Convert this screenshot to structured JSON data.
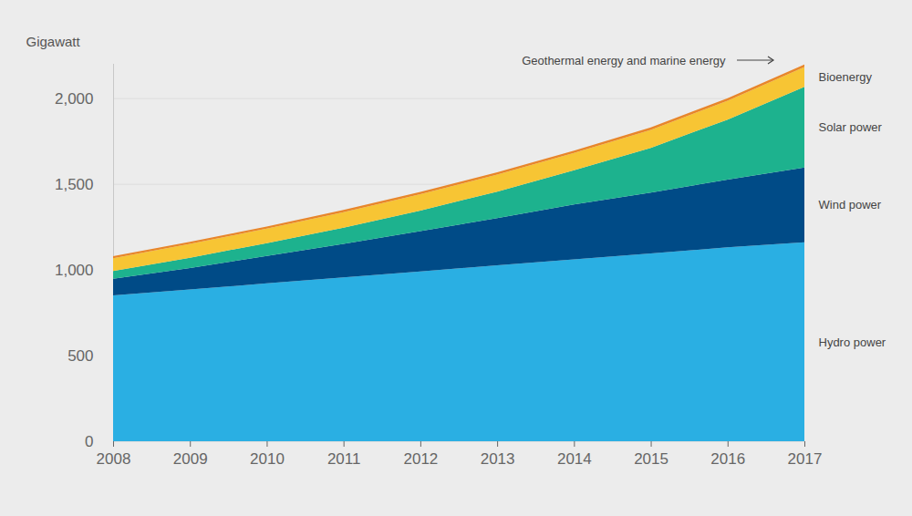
{
  "chart_data": {
    "type": "area",
    "stacked": true,
    "grid": true,
    "y_label": "Gigawatt",
    "x": [
      2008,
      2009,
      2010,
      2011,
      2012,
      2013,
      2014,
      2015,
      2016,
      2017
    ],
    "xlim": [
      2008,
      2017
    ],
    "xticks": [
      2008,
      2009,
      2010,
      2011,
      2012,
      2013,
      2014,
      2015,
      2016,
      2017
    ],
    "ylim": [
      0,
      2200
    ],
    "yticks": [
      0,
      500,
      {
        "value": 1000,
        "label": "1,000"
      },
      {
        "value": 1500,
        "label": "1,500"
      },
      {
        "value": 2000,
        "label": "2,000"
      }
    ],
    "series": [
      {
        "name": "Hydro power",
        "color": "#2aafe3",
        "values": [
          850,
          885,
          920,
          955,
          990,
          1025,
          1060,
          1095,
          1130,
          1160
        ]
      },
      {
        "name": "Wind power",
        "color": "#004b87",
        "values": [
          97,
          125,
          160,
          195,
          235,
          275,
          320,
          355,
          395,
          436
        ]
      },
      {
        "name": "Solar power",
        "color": "#1db28e",
        "values": [
          45,
          60,
          75,
          95,
          120,
          155,
          200,
          260,
          350,
          470
        ]
      },
      {
        "name": "Bioenergy",
        "color": "#f7c534",
        "values": [
          75,
          80,
          85,
          90,
          95,
          100,
          100,
          105,
          110,
          115
        ]
      },
      {
        "name": "Geothermal energy and marine energy",
        "color": "#e8862a",
        "values": [
          12,
          12,
          12,
          13,
          13,
          13,
          14,
          14,
          15,
          15
        ]
      }
    ]
  }
}
